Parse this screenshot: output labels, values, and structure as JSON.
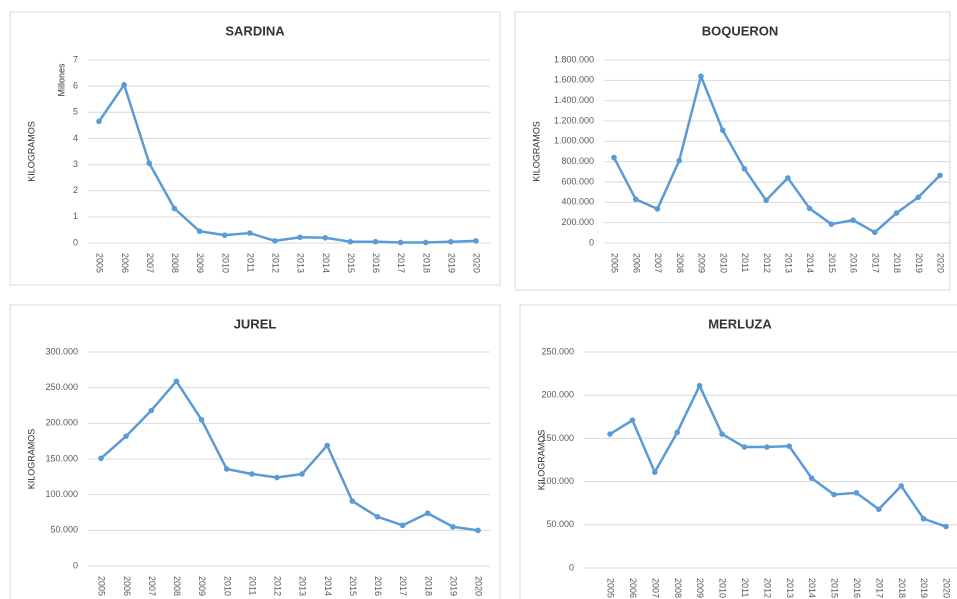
{
  "chart_data": [
    {
      "type": "line",
      "title": "SARDINA",
      "y_label": "KILOGRAMOS",
      "y_unit_label": "Millones",
      "categories": [
        "2005",
        "2006",
        "2007",
        "2008",
        "2009",
        "2010",
        "2011",
        "2012",
        "2013",
        "2014",
        "2015",
        "2016",
        "2017",
        "2018",
        "2019",
        "2020"
      ],
      "series": [
        {
          "name": "SARDINA",
          "color": "#5b9bd5",
          "values": [
            4.65,
            6.05,
            3.05,
            1.32,
            0.45,
            0.3,
            0.38,
            0.08,
            0.22,
            0.2,
            0.05,
            0.05,
            0.02,
            0.02,
            0.05,
            0.08
          ]
        }
      ],
      "ylim": [
        0,
        7
      ],
      "yticks": [
        0,
        1,
        2,
        3,
        4,
        5,
        6,
        7
      ],
      "grid": true
    },
    {
      "type": "line",
      "title": "BOQUERON",
      "y_label": "KILOGRAMOS",
      "categories": [
        "2005",
        "2006",
        "2007",
        "2008",
        "2009",
        "2010",
        "2011",
        "2012",
        "2013",
        "2014",
        "2015",
        "2016",
        "2017",
        "2018",
        "2019",
        "2020"
      ],
      "series": [
        {
          "name": "BOQUERON",
          "color": "#5b9bd5",
          "values": [
            840000,
            430000,
            335000,
            810000,
            1640000,
            1110000,
            730000,
            420000,
            640000,
            340000,
            185000,
            225000,
            105000,
            295000,
            450000,
            665000
          ]
        }
      ],
      "ylim": [
        0,
        1800000
      ],
      "yticks": [
        0,
        {
          "value": 200000,
          "label": "200.000"
        },
        {
          "value": 400000,
          "label": "400.000"
        },
        {
          "value": 600000,
          "label": "600.000"
        },
        {
          "value": 800000,
          "label": "800.000"
        },
        {
          "value": 1000000,
          "label": "1.000.000"
        },
        {
          "value": 1200000,
          "label": "1.200.000"
        },
        {
          "value": 1400000,
          "label": "1.400.000"
        },
        {
          "value": 1600000,
          "label": "1.600.000"
        },
        {
          "value": 1800000,
          "label": "1.800.000"
        }
      ],
      "grid": true
    },
    {
      "type": "line",
      "title": "JUREL",
      "y_label": "KILOGRAMOS",
      "categories": [
        "2005",
        "2006",
        "2007",
        "2008",
        "2009",
        "2010",
        "2011",
        "2012",
        "2013",
        "2014",
        "2015",
        "2016",
        "2017",
        "2018",
        "2019",
        "2020"
      ],
      "series": [
        {
          "name": "JUREL",
          "color": "#5b9bd5",
          "values": [
            151000,
            182000,
            218000,
            259000,
            205000,
            136000,
            129000,
            124000,
            129000,
            169000,
            91000,
            69000,
            57000,
            74000,
            55000,
            50000
          ]
        }
      ],
      "ylim": [
        0,
        300000
      ],
      "yticks": [
        0,
        {
          "value": 50000,
          "label": "50.000"
        },
        {
          "value": 100000,
          "label": "100.000"
        },
        {
          "value": 150000,
          "label": "150.000"
        },
        {
          "value": 200000,
          "label": "200.000"
        },
        {
          "value": 250000,
          "label": "250.000"
        },
        {
          "value": 300000,
          "label": "300.000"
        }
      ],
      "grid": true
    },
    {
      "type": "line",
      "title": "MERLUZA",
      "y_label": "KILOGRAMOS",
      "categories": [
        "2005",
        "2006",
        "2007",
        "2008",
        "2009",
        "2010",
        "2011",
        "2012",
        "2013",
        "2014",
        "2015",
        "2016",
        "2017",
        "2018",
        "2019",
        "2020"
      ],
      "series": [
        {
          "name": "MERLUZA",
          "color": "#5b9bd5",
          "values": [
            155000,
            171000,
            111000,
            157000,
            211000,
            155000,
            140000,
            140000,
            141000,
            104000,
            85000,
            87000,
            68000,
            95000,
            57000,
            48000
          ]
        }
      ],
      "ylim": [
        0,
        250000
      ],
      "yticks": [
        0,
        {
          "value": 50000,
          "label": "50.000"
        },
        {
          "value": 100000,
          "label": "100.000"
        },
        {
          "value": 150000,
          "label": "150.000"
        },
        {
          "value": 200000,
          "label": "200.000"
        },
        {
          "value": 250000,
          "label": "250.000"
        }
      ],
      "grid": true
    }
  ]
}
